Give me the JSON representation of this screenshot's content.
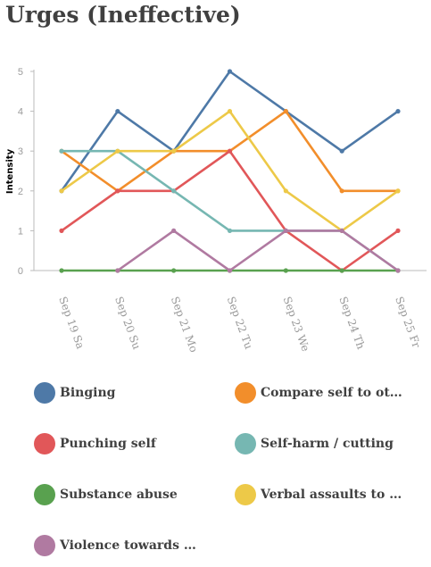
{
  "header": {
    "title": "Urges (Ineffective)"
  },
  "chart_data": {
    "type": "line",
    "title": "Urges (Ineffective)",
    "xlabel": "",
    "ylabel": "Intensity",
    "ylim": [
      0,
      5
    ],
    "yticks": [
      0,
      1,
      2,
      3,
      4,
      5
    ],
    "grid": false,
    "legend_position": "bottom",
    "categories": [
      "Sep 19 Sa",
      "Sep 20 Su",
      "Sep 21 Mo",
      "Sep 22 Tu",
      "Sep 23 We",
      "Sep 24 Th",
      "Sep 25 Fr"
    ],
    "series": [
      {
        "name": "Binging",
        "color": "#4e79a7",
        "values": [
          2,
          4,
          3,
          5,
          4,
          3,
          4
        ]
      },
      {
        "name": "Compare self to ot…",
        "color": "#f28e2b",
        "values": [
          3,
          2,
          3,
          3,
          4,
          2,
          2
        ]
      },
      {
        "name": "Punching self",
        "color": "#e15759",
        "values": [
          1,
          2,
          2,
          3,
          1,
          0,
          1
        ]
      },
      {
        "name": "Self-harm / cutting",
        "color": "#76b7b2",
        "values": [
          3,
          3,
          2,
          1,
          1,
          1,
          0
        ]
      },
      {
        "name": "Substance abuse",
        "color": "#59a14f",
        "values": [
          0,
          0,
          0,
          0,
          0,
          0,
          0
        ]
      },
      {
        "name": "Verbal assaults to …",
        "color": "#edc948",
        "values": [
          2,
          3,
          3,
          4,
          2,
          1,
          2
        ]
      },
      {
        "name": "Violence towards …",
        "color": "#b07aa1",
        "values": [
          null,
          0,
          1,
          0,
          1,
          1,
          0
        ]
      }
    ]
  }
}
